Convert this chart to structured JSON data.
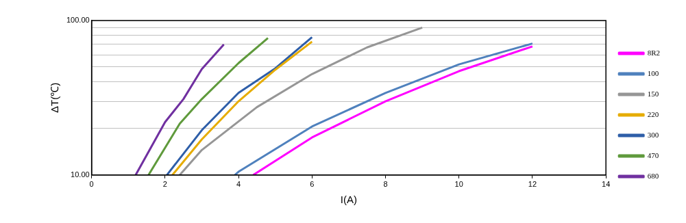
{
  "chart_data": {
    "type": "line",
    "xlabel": "I(A)",
    "ylabel": "ΔT(℃)",
    "log": "y",
    "grid": "y",
    "legend": "right",
    "marker": "none",
    "xlim": [
      0,
      14
    ],
    "xticks": [
      0,
      2,
      4,
      6,
      8,
      10,
      12,
      14
    ],
    "ylim": [
      10,
      100
    ],
    "yticks": [
      {
        "value": 10,
        "label": "10.00"
      },
      {
        "value": 20,
        "label": null
      },
      {
        "value": 30,
        "label": null
      },
      {
        "value": 40,
        "label": null
      },
      {
        "value": 50,
        "label": null
      },
      {
        "value": 60,
        "label": null
      },
      {
        "value": 70,
        "label": null
      },
      {
        "value": 80,
        "label": null
      },
      {
        "value": 90,
        "label": null
      },
      {
        "value": 100,
        "label": "100.00"
      }
    ],
    "series": [
      {
        "name": "8R2",
        "color": "#ff00ff",
        "x": [
          4.4,
          6,
          8,
          10,
          12
        ],
        "values": [
          10,
          17.5,
          30,
          47,
          68
        ]
      },
      {
        "name": "100",
        "color": "#4f81bd",
        "x": [
          3.9,
          4,
          6,
          8,
          10,
          12
        ],
        "values": [
          10,
          10.5,
          20.6,
          34,
          52,
          71
        ]
      },
      {
        "name": "150",
        "color": "#969696",
        "x": [
          2.4,
          3,
          4.5,
          6,
          7.5,
          9
        ],
        "values": [
          10,
          14.5,
          27.5,
          45,
          67,
          90
        ]
      },
      {
        "name": "220",
        "color": "#e6ac00",
        "x": [
          2.2,
          3,
          4,
          5,
          6
        ],
        "values": [
          10,
          17,
          30,
          48,
          73
        ]
      },
      {
        "name": "300",
        "color": "#2e5ea8",
        "x": [
          2.05,
          3,
          4,
          5,
          6
        ],
        "values": [
          10,
          19.5,
          34,
          49,
          78
        ]
      },
      {
        "name": "470",
        "color": "#5f9a3c",
        "x": [
          1.55,
          2.4,
          3,
          4,
          4.8
        ],
        "values": [
          10,
          21.5,
          31,
          53,
          77
        ]
      },
      {
        "name": "680",
        "color": "#7030a0",
        "x": [
          1.2,
          2,
          2.5,
          3,
          3.6
        ],
        "values": [
          10,
          22,
          31,
          48.5,
          70
        ]
      }
    ]
  }
}
